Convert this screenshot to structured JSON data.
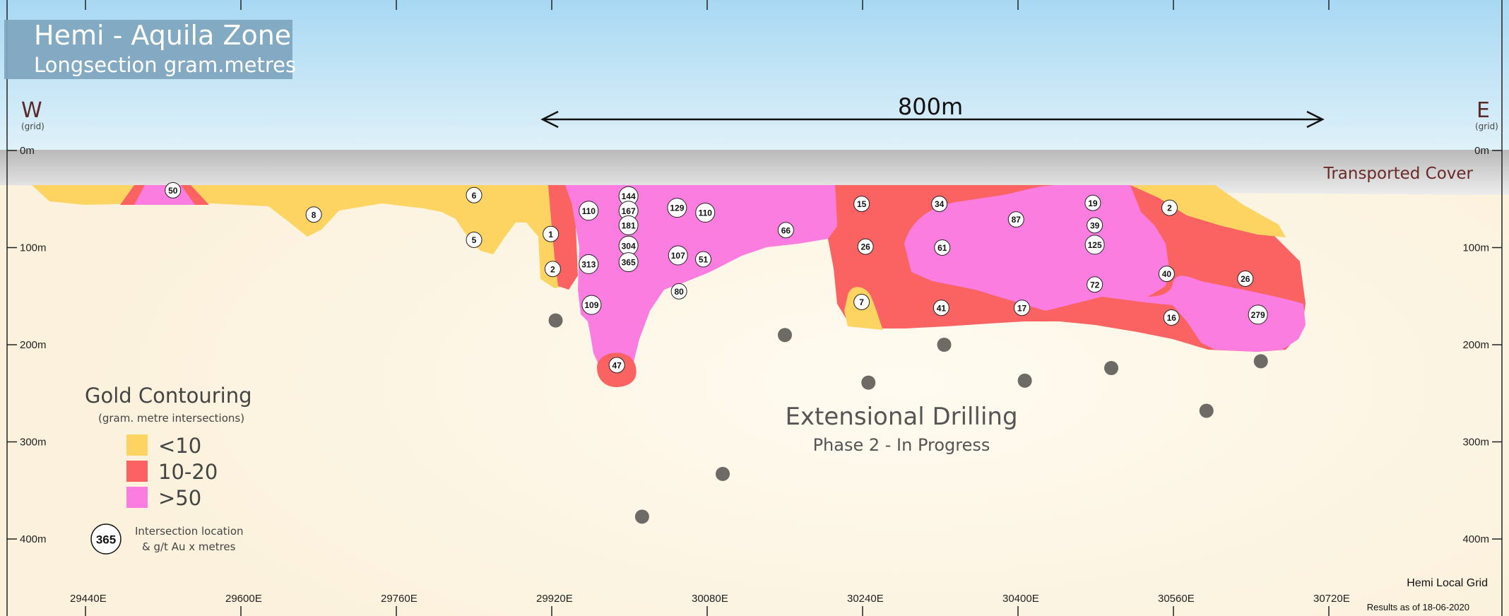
{
  "title": {
    "main": "Hemi - Aquila Zone",
    "sub": "Longsection gram.metres"
  },
  "direction": {
    "west": "W",
    "east": "E",
    "west_note": "(grid)",
    "east_note": "(grid)"
  },
  "scale_bar": {
    "label": "800m"
  },
  "cover_label": "Transported Cover",
  "depth_labels": [
    "0m",
    "100m",
    "200m",
    "300m",
    "400m"
  ],
  "easting_labels": [
    "29440E",
    "29600E",
    "29760E",
    "29920E",
    "30080E",
    "30240E",
    "30400E",
    "30560E",
    "30720E"
  ],
  "legend": {
    "title": "Gold Contouring",
    "subtitle": "(gram. metre intersections)",
    "items": [
      {
        "label": "<10",
        "color": "#fdd462"
      },
      {
        "label": "10-20",
        "color": "#fb6262"
      },
      {
        "label": ">50",
        "color": "#fb7de0"
      }
    ],
    "marker_value": "365",
    "marker_line1": "Intersection location",
    "marker_line2": "& g/t Au x metres"
  },
  "annotation": {
    "title": "Extensional Drilling",
    "subtitle": "Phase 2 - In Progress"
  },
  "grid_note": "Hemi Local Grid",
  "results_note": "Results as of 18-06-2020",
  "intersections": [
    {
      "value": "50",
      "e": 29530,
      "d": 41
    },
    {
      "value": "8",
      "e": 29675,
      "d": 66
    },
    {
      "value": "6",
      "e": 29840,
      "d": 46
    },
    {
      "value": "5",
      "e": 29840,
      "d": 92
    },
    {
      "value": "1",
      "e": 29919,
      "d": 86
    },
    {
      "value": "2",
      "e": 29921,
      "d": 122
    },
    {
      "value": "110",
      "e": 29958,
      "d": 62
    },
    {
      "value": "313",
      "e": 29958,
      "d": 117
    },
    {
      "value": "109",
      "e": 29961,
      "d": 159
    },
    {
      "value": "144",
      "e": 29999,
      "d": 47
    },
    {
      "value": "167",
      "e": 29999,
      "d": 62
    },
    {
      "value": "181",
      "e": 29999,
      "d": 77
    },
    {
      "value": "304",
      "e": 29999,
      "d": 98
    },
    {
      "value": "365",
      "e": 29999,
      "d": 115
    },
    {
      "value": "47",
      "e": 29987,
      "d": 221
    },
    {
      "value": "129",
      "e": 30049,
      "d": 59
    },
    {
      "value": "110",
      "e": 30078,
      "d": 64
    },
    {
      "value": "107",
      "e": 30050,
      "d": 108
    },
    {
      "value": "51",
      "e": 30076,
      "d": 112
    },
    {
      "value": "80",
      "e": 30051,
      "d": 145
    },
    {
      "value": "66",
      "e": 30161,
      "d": 82
    },
    {
      "value": "15",
      "e": 30239,
      "d": 55
    },
    {
      "value": "26",
      "e": 30243,
      "d": 99
    },
    {
      "value": "7",
      "e": 30239,
      "d": 156
    },
    {
      "value": "34",
      "e": 30319,
      "d": 55
    },
    {
      "value": "61",
      "e": 30322,
      "d": 100
    },
    {
      "value": "41",
      "e": 30321,
      "d": 162
    },
    {
      "value": "87",
      "e": 30398,
      "d": 71
    },
    {
      "value": "17",
      "e": 30404,
      "d": 162
    },
    {
      "value": "19",
      "e": 30477,
      "d": 54
    },
    {
      "value": "39",
      "e": 30479,
      "d": 77
    },
    {
      "value": "125",
      "e": 30479,
      "d": 97
    },
    {
      "value": "72",
      "e": 30479,
      "d": 138
    },
    {
      "value": "2",
      "e": 30556,
      "d": 59
    },
    {
      "value": "40",
      "e": 30553,
      "d": 127
    },
    {
      "value": "16",
      "e": 30558,
      "d": 172
    },
    {
      "value": "26",
      "e": 30634,
      "d": 132
    },
    {
      "value": "279",
      "e": 30647,
      "d": 169
    }
  ],
  "planned_holes": [
    {
      "e": 29924,
      "d": 175
    },
    {
      "e": 30160,
      "d": 190
    },
    {
      "e": 30324,
      "d": 200
    },
    {
      "e": 30246,
      "d": 239
    },
    {
      "e": 30407,
      "d": 237
    },
    {
      "e": 30496,
      "d": 224
    },
    {
      "e": 30650,
      "d": 217
    },
    {
      "e": 30594,
      "d": 268
    },
    {
      "e": 30096,
      "d": 333
    },
    {
      "e": 30013,
      "d": 377
    }
  ],
  "colors": {
    "sky_top": "#a8d8f3",
    "sky_bottom": "#d7eef8",
    "ground": "#fdf6e6",
    "cover": "#c9c9c9",
    "hole": "#6e6b66",
    "title_box": "#7fa6bf",
    "scale_line": "#111111",
    "cover_text": "#6b2a2a"
  }
}
